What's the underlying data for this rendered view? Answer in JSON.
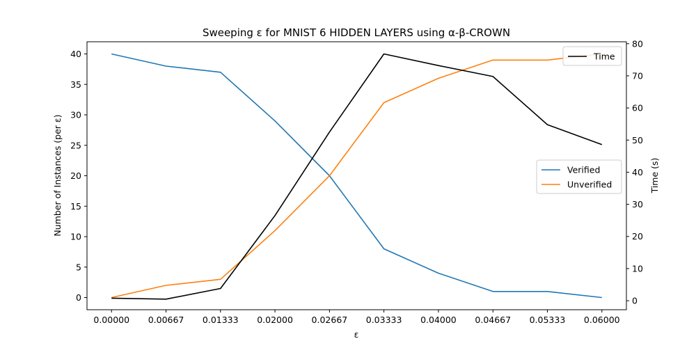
{
  "chart_data": {
    "type": "line",
    "title": "Sweeping ε for MNIST 6 HIDDEN LAYERS using α-β-CROWN",
    "xlabel": "ε",
    "ylabel": "Number of Instances (per ε)",
    "y2label": "Time (s)",
    "x": [
      0.0,
      0.00667,
      0.01333,
      0.02,
      0.02667,
      0.03333,
      0.04,
      0.04667,
      0.05333,
      0.06
    ],
    "x_tick_labels": [
      "0.00000",
      "0.00667",
      "0.01333",
      "0.02000",
      "0.02667",
      "0.03333",
      "0.04000",
      "0.04667",
      "0.05333",
      "0.06000"
    ],
    "xlim": [
      -0.003,
      0.063
    ],
    "ylim": [
      -2,
      42
    ],
    "y_ticks": [
      0,
      5,
      10,
      15,
      20,
      25,
      30,
      35,
      40
    ],
    "y2lim": [
      -2.8,
      80.6
    ],
    "y2_ticks": [
      0,
      10,
      20,
      30,
      40,
      50,
      60,
      70,
      80
    ],
    "series": [
      {
        "name": "Verified",
        "axis": "left",
        "color": "#1f77b4",
        "values": [
          40,
          38,
          37,
          29,
          20,
          8,
          4,
          1,
          1,
          0
        ]
      },
      {
        "name": "Unverified",
        "axis": "left",
        "color": "#ff7f0e",
        "values": [
          0,
          2,
          3,
          11,
          20,
          32,
          36,
          39,
          39,
          40
        ]
      },
      {
        "name": "Time",
        "axis": "right",
        "color": "#000000",
        "values": [
          0.8,
          0.5,
          3.8,
          26.5,
          52.5,
          76.8,
          73.2,
          69.8,
          54.8,
          48.6
        ]
      }
    ],
    "legend_left": {
      "placement": "center-right",
      "entries": [
        "Verified",
        "Unverified"
      ]
    },
    "legend_right": {
      "placement": "top-right",
      "entries": [
        "Time"
      ]
    },
    "grid": false
  }
}
